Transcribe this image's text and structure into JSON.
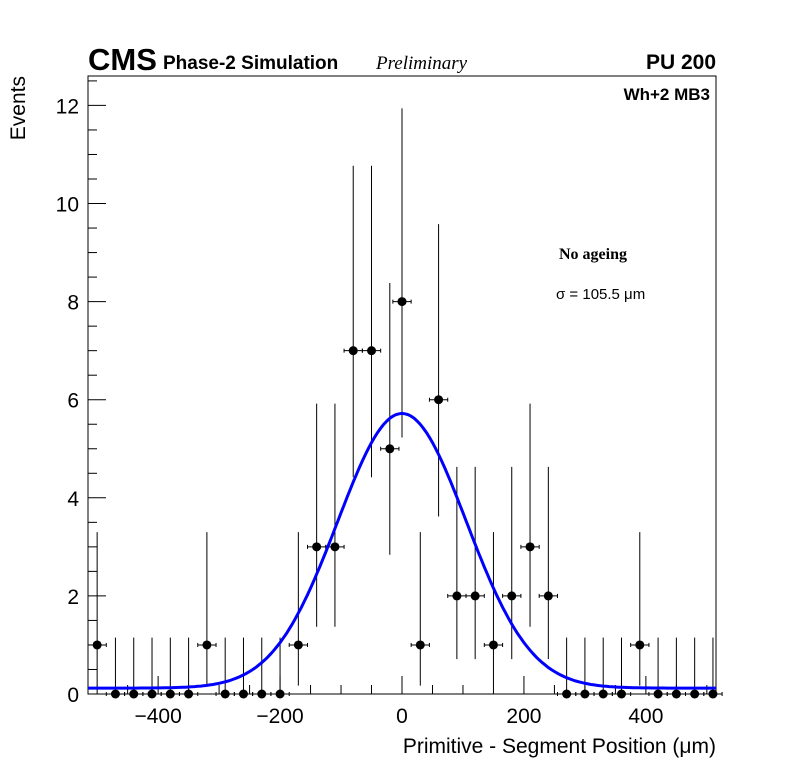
{
  "header": {
    "experiment": "CMS",
    "subtitle": "Phase-2 Simulation",
    "status": "Preliminary",
    "pileup": "PU 200",
    "station": "Wh+2 MB3"
  },
  "legend": {
    "condition": "No ageing",
    "sigma": "σ = 105.5 μm"
  },
  "chart_data": {
    "type": "scatter",
    "title": "",
    "xlabel": "Primitive - Segment Position (μm)",
    "ylabel": "Events",
    "xlim": [
      -515,
      515
    ],
    "ylim": [
      0,
      12.6
    ],
    "xticks": [
      -400,
      -200,
      0,
      200,
      400
    ],
    "xtick_labels": [
      "−400",
      "−200",
      "0",
      "200",
      "400"
    ],
    "yticks": [
      0,
      2,
      4,
      6,
      8,
      10,
      12
    ],
    "ytick_labels": [
      "0",
      "2",
      "4",
      "6",
      "8",
      "10",
      "12"
    ],
    "bin_half_width": 15,
    "series": [
      {
        "name": "Simulated events",
        "style": "points-with-errors",
        "color": "#000000",
        "x": [
          -500,
          -470,
          -440,
          -410,
          -380,
          -350,
          -320,
          -290,
          -260,
          -230,
          -200,
          -170,
          -140,
          -110,
          -80,
          -50,
          -20,
          0,
          30,
          60,
          90,
          120,
          150,
          180,
          210,
          240,
          270,
          300,
          330,
          360,
          390,
          420,
          450,
          480,
          510
        ],
        "y": [
          1,
          0,
          0,
          0,
          0,
          0,
          1,
          0,
          0,
          0,
          0,
          1,
          3,
          3,
          7,
          7,
          5,
          8,
          1,
          6,
          2,
          2,
          1,
          2,
          3,
          2,
          0,
          0,
          0,
          0,
          1,
          0,
          0,
          0,
          0
        ],
        "err_low": [
          0.83,
          0,
          0,
          0,
          0,
          0,
          0.83,
          0,
          0,
          0,
          0,
          0.83,
          1.63,
          1.63,
          2.58,
          2.58,
          2.16,
          2.77,
          0.83,
          2.38,
          1.29,
          1.29,
          0.83,
          1.29,
          1.63,
          1.29,
          0,
          0,
          0,
          0,
          0.83,
          0,
          0,
          0,
          0
        ],
        "err_high": [
          2.3,
          1.15,
          1.15,
          1.15,
          1.15,
          1.15,
          2.3,
          1.15,
          1.15,
          1.15,
          1.15,
          2.3,
          2.92,
          2.92,
          3.77,
          3.77,
          3.38,
          3.94,
          2.3,
          3.58,
          2.63,
          2.63,
          2.3,
          2.63,
          2.92,
          2.63,
          1.15,
          1.15,
          1.15,
          1.15,
          2.3,
          1.15,
          1.15,
          1.15,
          1.15
        ]
      },
      {
        "name": "Gaussian fit",
        "style": "line",
        "color": "#0000ff",
        "function": "gaussian",
        "amplitude": 5.6,
        "mean": 0,
        "sigma": 105.5,
        "baseline": 0.12
      }
    ]
  }
}
